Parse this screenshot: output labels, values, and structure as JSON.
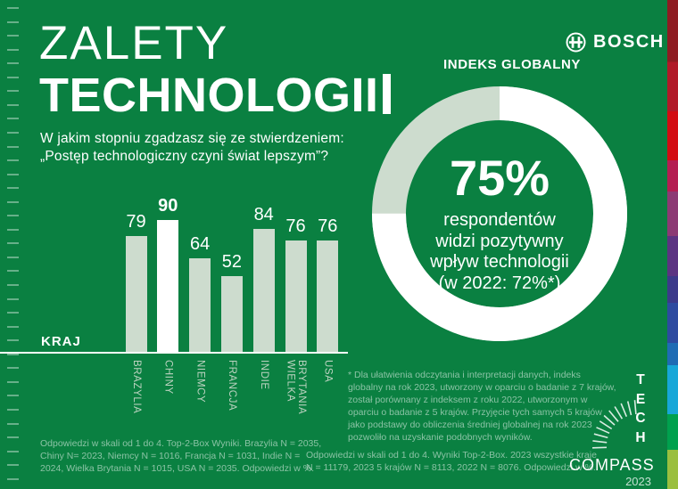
{
  "colors": {
    "background": "#0a8041",
    "light_green": "#cddcce",
    "white": "#ffffff",
    "stripe": [
      "#8e1c22",
      "#b11a28",
      "#d30c12",
      "#b41e52",
      "#8c3a74",
      "#5c3482",
      "#3c3a8a",
      "#2e4ba0",
      "#1f6cb4",
      "#18a7d8",
      "#00a14e",
      "#9abf3f"
    ]
  },
  "header": {
    "title_line1": "ZALETY",
    "title_line2": "TECHNOLOGII",
    "question_line1": "W jakim stopniu zgadzasz się ze stwierdzeniem:",
    "question_line2": "„Postęp technologiczny czyni świat lepszym”?"
  },
  "brand": {
    "name": "BOSCH"
  },
  "chart_data": [
    {
      "type": "bar",
      "axis_label": "KRAJ",
      "categories": [
        "BRAZYLIA",
        "CHINY",
        "NIEMCY",
        "FRANCJA",
        "INDIE",
        "WIELKA BRYTANIA",
        "USA"
      ],
      "values": [
        79,
        90,
        64,
        52,
        84,
        76,
        76
      ],
      "highlight_category": "CHINY",
      "ylim": [
        0,
        100
      ],
      "bar_color": "#cddcce",
      "highlight_color": "#ffffff",
      "grid": false,
      "legend": false
    },
    {
      "type": "pie",
      "title": "INDEKS GLOBALNY",
      "slices": [
        {
          "value": 75,
          "color": "#ffffff"
        },
        {
          "value": 25,
          "color": "#cddcce"
        }
      ],
      "center_value": "75%",
      "center_lines": [
        "respondentów",
        "widzi pozytywny",
        "wpływ technologii",
        "(w 2022: 72%*)"
      ]
    }
  ],
  "footnotes": {
    "bar_chart_note": "Odpowiedzi w skali od 1 do 4. Top-2-Box Wyniki. Brazylia N = 2035, Chiny N= 2023, Niemcy N = 1016, Francja N = 1031, Indie N = 2024, Wielka Brytania N = 1015, USA N = 2035. Odpowiedzi w %.",
    "global_index_note": "Odpowiedzi w skali od 1 do 4. Wyniki Top-2-Box. 2023 wszystkie kraje N = 11179, 2023 5 krajów N = 8113, 2022 N = 8076. Odpowiedzi w %.",
    "asterisk_note": "* Dla ułatwienia odczytania i interpretacji danych, indeks globalny na rok 2023, utworzony w oparciu o badanie z 7 krajów, został porównany z indeksem z roku 2022, utworzonym w oparciu o badanie z 5 krajów. Przyjęcie tych samych 5 krajów jako podstawy do obliczenia średniej globalnej na rok 2023 pozwoliło na uzyskanie podobnych wyników."
  },
  "compass_logo": {
    "word_vertical": "TECH",
    "word_horizontal": "COMPASS",
    "year": "2023"
  }
}
